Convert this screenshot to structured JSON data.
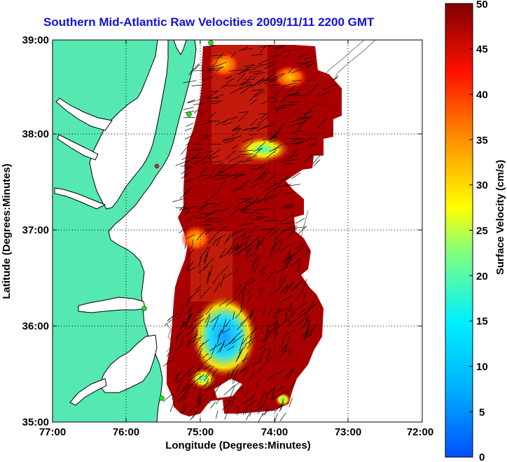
{
  "title": "Southern Mid-Atlantic Raw Velocities 2009/11/11 2200 GMT",
  "x_axis": {
    "label": "Longitude (Degrees:Minutes)",
    "ticks": [
      "77:00",
      "76:00",
      "75:00",
      "74:00",
      "73:00",
      "72:00"
    ],
    "values": [
      -77,
      -76,
      -75,
      -74,
      -73,
      -72
    ]
  },
  "y_axis": {
    "label": "Latitude (Degrees:Minutes)",
    "ticks": [
      "39:00",
      "38:00",
      "37:00",
      "36:00",
      "35:00"
    ],
    "values": [
      39,
      38,
      37,
      36,
      35
    ]
  },
  "colorbar": {
    "label": "Surface Velocity (cm/s)",
    "ticks": [
      "50",
      "45",
      "40",
      "35",
      "30",
      "25",
      "20",
      "15",
      "10",
      "5",
      "0"
    ],
    "min": 0,
    "max": 50,
    "colormap": "jet"
  },
  "colors": {
    "land": "#55e8b0",
    "coastline": "#000000",
    "bathymetry": "#9a9a9a",
    "station_marker": "#22dd22",
    "title": "#1010dd"
  }
}
